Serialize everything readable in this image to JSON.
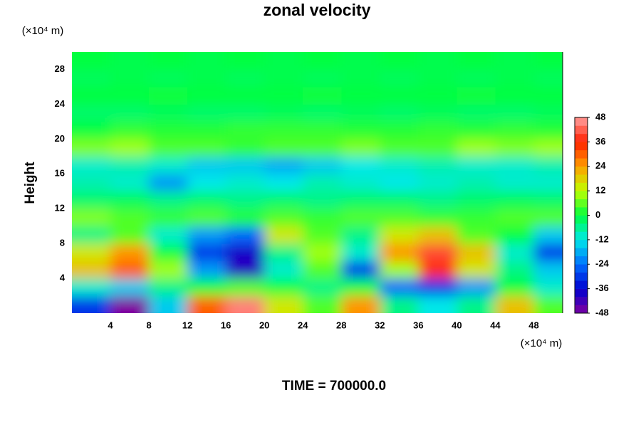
{
  "chart_data": {
    "type": "contour",
    "title": "zonal velocity",
    "y_unit": "(×10⁴ m)",
    "x_unit": "(×10⁴ m)",
    "ylabel": "Height",
    "footer": "TIME = 700000.0",
    "xlim": [
      0,
      51
    ],
    "ylim": [
      0,
      30
    ],
    "xticks": [
      4,
      8,
      12,
      16,
      20,
      24,
      28,
      32,
      36,
      40,
      44,
      48
    ],
    "yticks": [
      4,
      8,
      12,
      16,
      20,
      24,
      28
    ],
    "clim": [
      -48,
      48
    ],
    "cticks": [
      -48,
      -36,
      -24,
      -12,
      0,
      12,
      24,
      36,
      48
    ],
    "colorscale": [
      "#8000a0",
      "#0000d0",
      "#0070ff",
      "#00e8e8",
      "#00ff40",
      "#c0ff00",
      "#ffa000",
      "#ff2000",
      "#ffa0a0"
    ],
    "x": [
      2,
      6,
      10,
      14,
      18,
      22,
      26,
      30,
      34,
      38,
      42,
      46,
      50
    ],
    "y": [
      1,
      3,
      5,
      7,
      9,
      11,
      13,
      15,
      17,
      19,
      21,
      23,
      25,
      27,
      29
    ],
    "z": [
      [
        -30,
        -48,
        -15,
        30,
        45,
        15,
        5,
        25,
        -5,
        -12,
        -5,
        20,
        5
      ],
      [
        -10,
        -15,
        -5,
        0,
        5,
        0,
        -5,
        0,
        -25,
        -30,
        -20,
        0,
        -10
      ],
      [
        20,
        30,
        10,
        -20,
        -40,
        -10,
        5,
        -30,
        10,
        35,
        15,
        -5,
        -15
      ],
      [
        15,
        25,
        0,
        -30,
        -38,
        -5,
        10,
        -10,
        25,
        40,
        20,
        -10,
        -30
      ],
      [
        -5,
        5,
        -10,
        -20,
        -25,
        15,
        5,
        -5,
        15,
        20,
        5,
        0,
        -15
      ],
      [
        8,
        5,
        3,
        5,
        2,
        5,
        3,
        5,
        5,
        3,
        3,
        5,
        5
      ],
      [
        -3,
        -2,
        -5,
        -3,
        -5,
        -3,
        -5,
        -3,
        -3,
        -5,
        -3,
        -2,
        -3
      ],
      [
        -8,
        -10,
        -20,
        -12,
        -10,
        -12,
        -8,
        -10,
        -12,
        -10,
        -8,
        -10,
        -10
      ],
      [
        -10,
        -8,
        -10,
        -15,
        -15,
        -18,
        -15,
        -12,
        -10,
        -8,
        -10,
        -10,
        -8
      ],
      [
        8,
        10,
        5,
        5,
        3,
        5,
        5,
        8,
        5,
        5,
        10,
        8,
        10
      ],
      [
        0,
        3,
        2,
        2,
        3,
        3,
        3,
        2,
        2,
        3,
        2,
        3,
        2
      ],
      [
        -3,
        -3,
        -2,
        -3,
        -3,
        -2,
        -3,
        -2,
        -3,
        -2,
        -3,
        -3,
        -2
      ],
      [
        0,
        0,
        1,
        0,
        0,
        0,
        1,
        0,
        0,
        0,
        1,
        0,
        0
      ],
      [
        -2,
        -1,
        -2,
        -1,
        -2,
        -1,
        -2,
        -1,
        -2,
        -1,
        -2,
        -1,
        -2
      ],
      [
        0,
        -1,
        0,
        -1,
        0,
        -1,
        0,
        -1,
        0,
        -1,
        0,
        -1,
        0
      ]
    ]
  }
}
